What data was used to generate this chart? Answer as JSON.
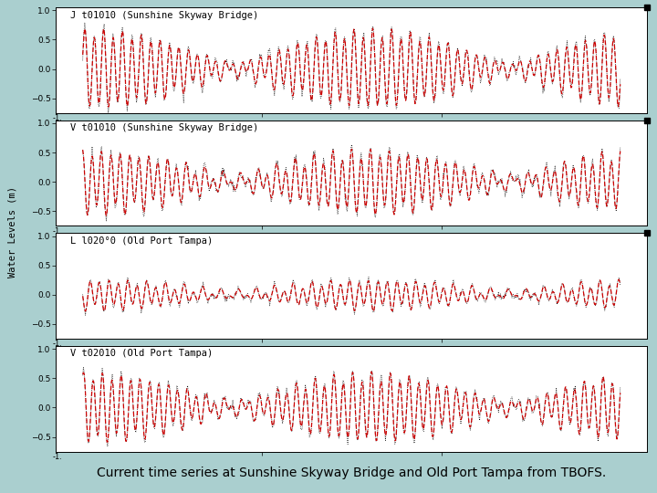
{
  "subplot_labels": [
    "J t01010 (Sunshine Skyway Bridge)",
    "V t01010 (Sunshine Skyway Bridge)",
    "L l020°0 (Old Port Tampa)",
    "V t02010 (Old Port Tampa)"
  ],
  "ylim": [
    -0.75,
    1.05
  ],
  "yticks": [
    -0.5,
    0.0,
    0.5,
    1.0
  ],
  "ylabel": "Water Levels (m)",
  "caption": "Current time series at Sunshine Skyway Bridge and Old Port Tampa from TBOFS.",
  "background_color": "#aacfcf",
  "plot_bg": "#ffffff",
  "black_line_color": "#000000",
  "red_line_color": "#cc0000",
  "n_points": 800,
  "caption_fontsize": 10,
  "label_fontsize": 7.5,
  "tick_fontsize": 6.5
}
